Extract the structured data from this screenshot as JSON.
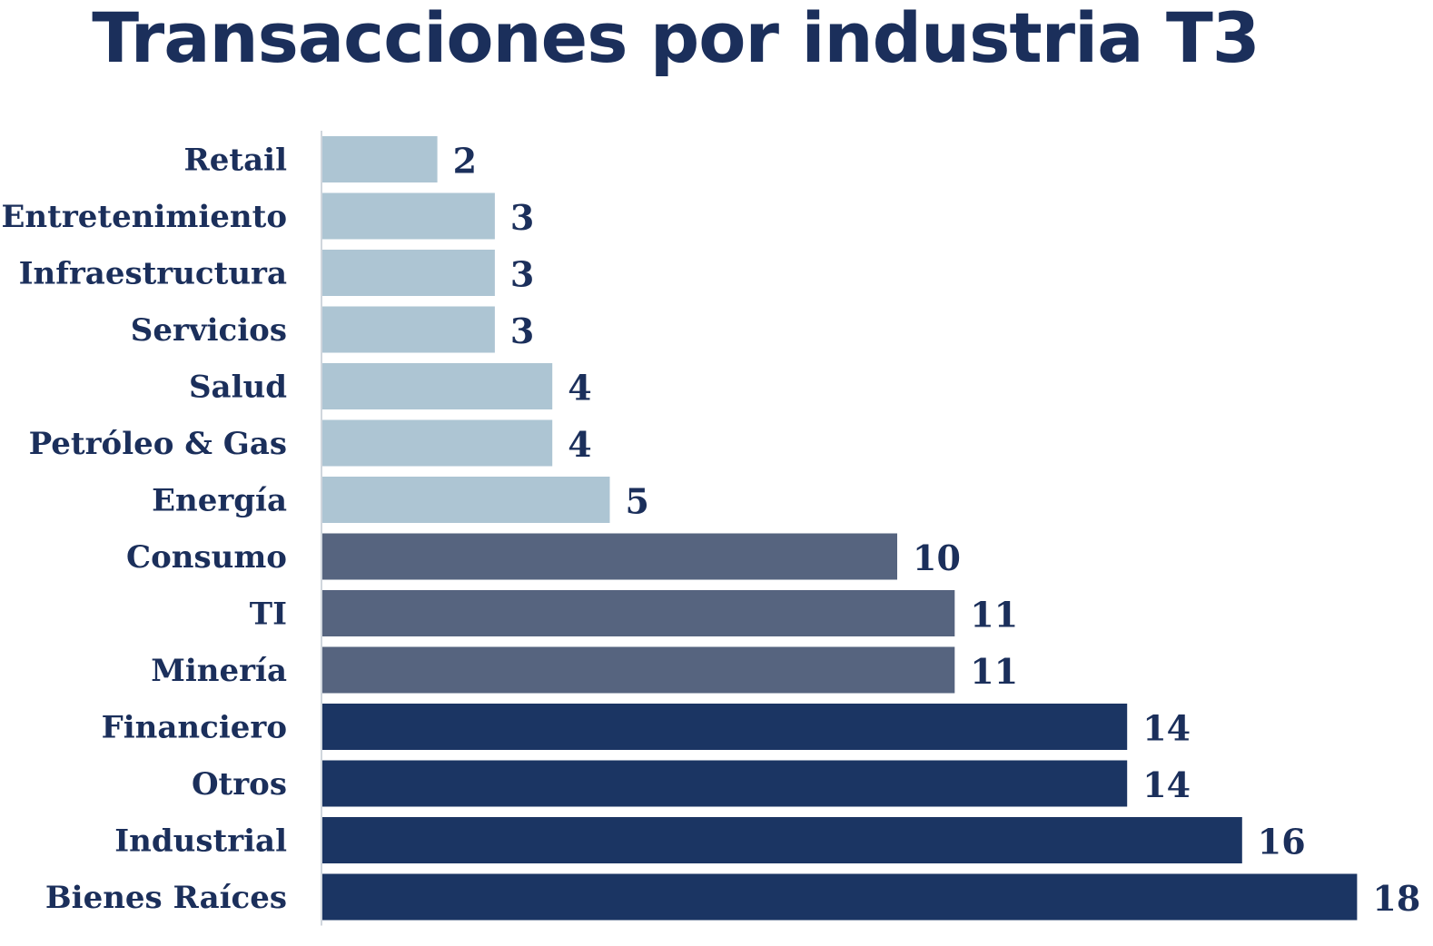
{
  "chart_data": {
    "type": "bar",
    "orientation": "horizontal",
    "title": "Transacciones por industria T3",
    "xlabel": "",
    "ylabel": "",
    "xlim": [
      0,
      18
    ],
    "grid": false,
    "legend": "none",
    "data_labels": true,
    "categories": [
      "Retail",
      "Entretenimiento",
      "Infraestructura",
      "Servicios",
      "Salud",
      "Petróleo & Gas",
      "Energía",
      "Consumo",
      "TI",
      "Minería",
      "Financiero",
      "Otros",
      "Industrial",
      "Bienes Raíces"
    ],
    "values": [
      2,
      3,
      3,
      3,
      4,
      4,
      5,
      10,
      11,
      11,
      14,
      14,
      16,
      18
    ],
    "value_labels": [
      "2",
      "3",
      "3",
      "3",
      "4",
      "4",
      "5",
      "10",
      "11",
      "11",
      "14",
      "14",
      "16",
      "18"
    ],
    "colors": {
      "low": "#adc5d3",
      "mid": "#56647f",
      "high": "#1b3563",
      "text": "#1b2f5b",
      "axis": "#d0d6dd"
    },
    "bar_color_levels": [
      "low",
      "low",
      "low",
      "low",
      "low",
      "low",
      "low",
      "mid",
      "mid",
      "mid",
      "high",
      "high",
      "high",
      "high"
    ]
  }
}
